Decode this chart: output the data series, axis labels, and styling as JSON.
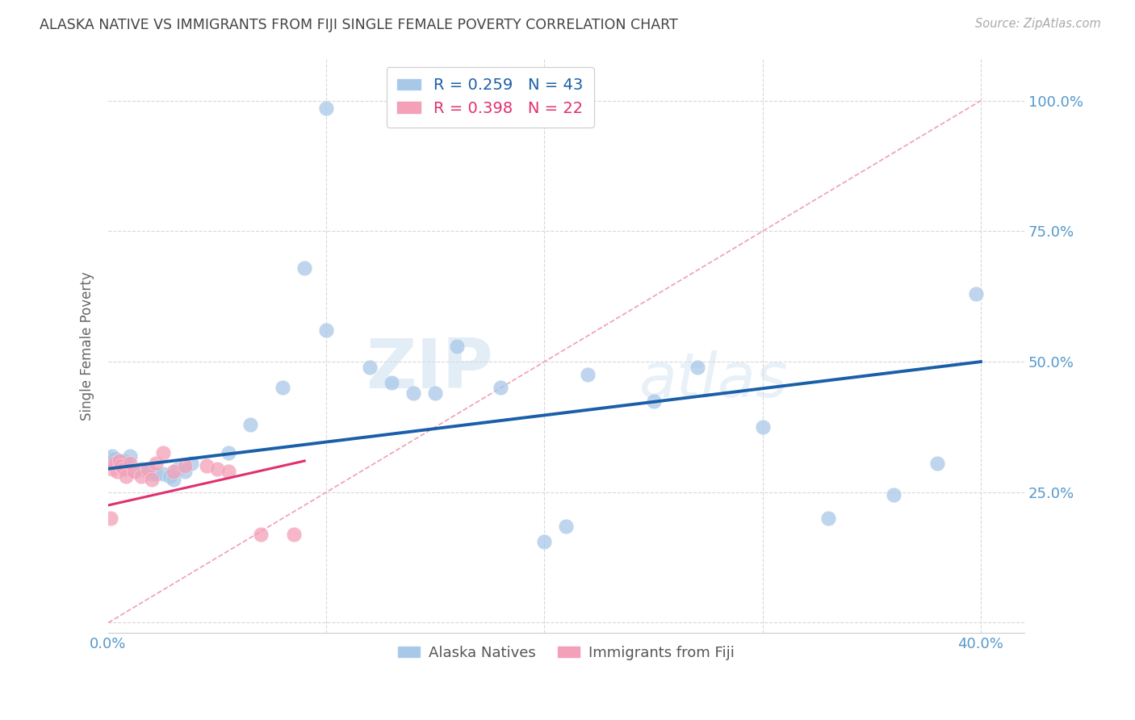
{
  "title": "ALASKA NATIVE VS IMMIGRANTS FROM FIJI SINGLE FEMALE POVERTY CORRELATION CHART",
  "source": "Source: ZipAtlas.com",
  "ylabel": "Single Female Poverty",
  "xlim": [
    0.0,
    0.42
  ],
  "ylim": [
    -0.02,
    1.08
  ],
  "xticks": [
    0.0,
    0.1,
    0.2,
    0.3,
    0.4
  ],
  "xticklabels": [
    "0.0%",
    "",
    "",
    "",
    "40.0%"
  ],
  "yticks": [
    0.0,
    0.25,
    0.5,
    0.75,
    1.0
  ],
  "yticklabels": [
    "",
    "25.0%",
    "50.0%",
    "75.0%",
    "100.0%"
  ],
  "legend_r1": "R = 0.259",
  "legend_n1": "N = 43",
  "legend_r2": "R = 0.398",
  "legend_n2": "N = 22",
  "blue_color": "#a8c8e8",
  "pink_color": "#f4a0b8",
  "blue_line_color": "#1a5fa8",
  "pink_line_color": "#e03070",
  "diagonal_color": "#f0a0b0",
  "grid_color": "#d8d8d8",
  "axis_label_color": "#5599cc",
  "title_color": "#444444",
  "watermark_zip": "ZIP",
  "watermark_atlas": "atlas",
  "alaska_x": [
    0.001,
    0.002,
    0.003,
    0.004,
    0.005,
    0.006,
    0.007,
    0.008,
    0.009,
    0.01,
    0.012,
    0.015,
    0.018,
    0.02,
    0.022,
    0.025,
    0.028,
    0.03,
    0.032,
    0.035,
    0.038,
    0.055,
    0.065,
    0.08,
    0.09,
    0.1,
    0.12,
    0.13,
    0.14,
    0.15,
    0.16,
    0.18,
    0.2,
    0.21,
    0.22,
    0.25,
    0.27,
    0.3,
    0.33,
    0.36,
    0.38,
    0.398,
    0.1
  ],
  "alaska_y": [
    0.315,
    0.32,
    0.315,
    0.305,
    0.31,
    0.3,
    0.31,
    0.305,
    0.295,
    0.32,
    0.29,
    0.295,
    0.29,
    0.285,
    0.285,
    0.285,
    0.28,
    0.275,
    0.295,
    0.29,
    0.305,
    0.325,
    0.38,
    0.45,
    0.68,
    0.56,
    0.49,
    0.46,
    0.44,
    0.44,
    0.53,
    0.45,
    0.155,
    0.185,
    0.475,
    0.425,
    0.49,
    0.375,
    0.2,
    0.245,
    0.305,
    0.63,
    0.985
  ],
  "fiji_x": [
    0.001,
    0.002,
    0.003,
    0.004,
    0.005,
    0.006,
    0.007,
    0.008,
    0.01,
    0.012,
    0.015,
    0.018,
    0.02,
    0.022,
    0.025,
    0.03,
    0.035,
    0.045,
    0.05,
    0.055,
    0.07,
    0.085
  ],
  "fiji_y": [
    0.2,
    0.295,
    0.305,
    0.29,
    0.31,
    0.3,
    0.295,
    0.28,
    0.305,
    0.29,
    0.28,
    0.295,
    0.275,
    0.305,
    0.325,
    0.29,
    0.3,
    0.3,
    0.295,
    0.29,
    0.17,
    0.17
  ],
  "blue_line_x0": 0.0,
  "blue_line_y0": 0.295,
  "blue_line_x1": 0.4,
  "blue_line_y1": 0.5,
  "pink_line_x0": 0.0,
  "pink_line_y0": 0.225,
  "pink_line_x1": 0.09,
  "pink_line_y1": 0.31
}
